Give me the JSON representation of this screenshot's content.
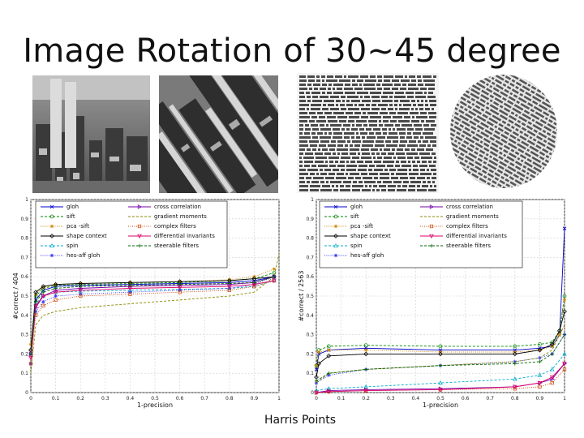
{
  "slide": {
    "title": "Image Rotation of 30~45 degree",
    "caption": "Harris Points"
  },
  "colors": {
    "gloh": "#0000cc",
    "sift": "#008800",
    "pca_sift": "#cc8800",
    "shape_context": "#000000",
    "spin": "#00aacc",
    "hes_aff_gloh": "#3333ff",
    "cross_correlation": "#7700aa",
    "gradient_moments": "#888800",
    "complex_filters": "#cc4400",
    "differential_invariants": "#dd0066",
    "steerable_filters": "#006600"
  },
  "chart_data": [
    {
      "type": "line",
      "xlabel": "1-precision",
      "ylabel": "#correct / 404",
      "xlim": [
        0,
        1
      ],
      "ylim": [
        0,
        1
      ],
      "xticks": [
        "0",
        "0.1",
        "0.2",
        "0.3",
        "0.4",
        "0.5",
        "0.6",
        "0.7",
        "0.8",
        "0.9",
        "1"
      ],
      "yticks": [
        "0",
        "0.1",
        "0.2",
        "0.3",
        "0.4",
        "0.5",
        "0.6",
        "0.7",
        "0.8",
        "0.9",
        "1"
      ],
      "grid": true,
      "legend": "top",
      "series": [
        {
          "name": "gloh",
          "color_key": "gloh",
          "marker": "x",
          "x": [
            0,
            0.02,
            0.05,
            0.1,
            0.2,
            0.4,
            0.6,
            0.8,
            0.9,
            0.98
          ],
          "y": [
            0.2,
            0.48,
            0.53,
            0.55,
            0.555,
            0.56,
            0.565,
            0.57,
            0.58,
            0.6
          ]
        },
        {
          "name": "sift",
          "color_key": "sift",
          "marker": "o",
          "x": [
            0,
            0.02,
            0.05,
            0.1,
            0.2,
            0.4,
            0.6,
            0.8,
            0.9,
            0.98
          ],
          "y": [
            0.22,
            0.5,
            0.54,
            0.555,
            0.56,
            0.565,
            0.57,
            0.58,
            0.59,
            0.62
          ]
        },
        {
          "name": "pca -sift",
          "color_key": "pca_sift",
          "marker": "*",
          "x": [
            0,
            0.02,
            0.05,
            0.1,
            0.2,
            0.4,
            0.6,
            0.8,
            0.9,
            0.98
          ],
          "y": [
            0.25,
            0.51,
            0.545,
            0.56,
            0.565,
            0.57,
            0.575,
            0.585,
            0.6,
            0.64
          ]
        },
        {
          "name": "shape context",
          "color_key": "shape_context",
          "marker": "d",
          "x": [
            0,
            0.02,
            0.05,
            0.1,
            0.2,
            0.4,
            0.6,
            0.8,
            0.9,
            0.98
          ],
          "y": [
            0.22,
            0.52,
            0.55,
            0.56,
            0.565,
            0.57,
            0.575,
            0.58,
            0.59,
            0.6
          ]
        },
        {
          "name": "spin",
          "color_key": "spin",
          "marker": "^",
          "x": [
            0,
            0.02,
            0.05,
            0.1,
            0.2,
            0.4,
            0.6,
            0.8,
            0.9,
            0.98
          ],
          "y": [
            0.2,
            0.46,
            0.5,
            0.52,
            0.525,
            0.53,
            0.535,
            0.54,
            0.55,
            0.58
          ]
        },
        {
          "name": "hes-aff gloh",
          "color_key": "hes_aff_gloh",
          "marker": "*",
          "x": [
            0,
            0.02,
            0.05,
            0.1,
            0.2,
            0.4,
            0.6,
            0.8,
            0.9,
            0.98
          ],
          "y": [
            0.15,
            0.42,
            0.47,
            0.5,
            0.51,
            0.52,
            0.53,
            0.54,
            0.56,
            0.6
          ]
        },
        {
          "name": "cross correlation",
          "color_key": "cross_correlation",
          "marker": ">",
          "x": [
            0,
            0.02,
            0.05,
            0.1,
            0.2,
            0.4,
            0.6,
            0.8,
            0.9,
            0.98
          ],
          "y": [
            0.2,
            0.44,
            0.5,
            0.53,
            0.54,
            0.55,
            0.555,
            0.56,
            0.57,
            0.6
          ]
        },
        {
          "name": "gradient moments",
          "color_key": "gradient_moments",
          "marker": "",
          "x": [
            0,
            0.02,
            0.05,
            0.1,
            0.2,
            0.4,
            0.6,
            0.8,
            0.9,
            0.98,
            1
          ],
          "y": [
            0.1,
            0.35,
            0.4,
            0.42,
            0.44,
            0.46,
            0.48,
            0.5,
            0.52,
            0.6,
            0.72
          ]
        },
        {
          "name": "complex filters",
          "color_key": "complex_filters",
          "marker": "s",
          "x": [
            0,
            0.02,
            0.05,
            0.1,
            0.2,
            0.4,
            0.6,
            0.8,
            0.9,
            0.98
          ],
          "y": [
            0.15,
            0.4,
            0.45,
            0.48,
            0.5,
            0.51,
            0.52,
            0.53,
            0.55,
            0.58
          ]
        },
        {
          "name": "differential invariants",
          "color_key": "differential_invariants",
          "marker": "v",
          "x": [
            0,
            0.02,
            0.05,
            0.1,
            0.2,
            0.4,
            0.6,
            0.8,
            0.9,
            0.98
          ],
          "y": [
            0.18,
            0.45,
            0.5,
            0.52,
            0.53,
            0.54,
            0.545,
            0.55,
            0.56,
            0.58
          ]
        },
        {
          "name": "steerable filters",
          "color_key": "steerable_filters",
          "marker": "+",
          "x": [
            0,
            0.02,
            0.05,
            0.1,
            0.2,
            0.4,
            0.6,
            0.8,
            0.9,
            0.98
          ],
          "y": [
            0.2,
            0.47,
            0.52,
            0.54,
            0.55,
            0.555,
            0.56,
            0.565,
            0.57,
            0.6
          ]
        }
      ]
    },
    {
      "type": "line",
      "xlabel": "1-precision",
      "ylabel": "#correct / 2563",
      "xlim": [
        0,
        1
      ],
      "ylim": [
        0,
        1
      ],
      "xticks": [
        "0",
        "0.1",
        "0.2",
        "0.3",
        "0.4",
        "0.5",
        "0.6",
        "0.7",
        "0.8",
        "0.9",
        "1"
      ],
      "yticks": [
        "0",
        "0.1",
        "0.2",
        "0.3",
        "0.4",
        "0.5",
        "0.6",
        "0.7",
        "0.8",
        "0.9",
        "1"
      ],
      "grid": true,
      "legend": "top",
      "series": [
        {
          "name": "gloh",
          "color_key": "gloh",
          "marker": "x",
          "x": [
            0,
            0.01,
            0.05,
            0.2,
            0.5,
            0.8,
            0.9,
            0.95,
            0.98,
            1
          ],
          "y": [
            0.12,
            0.2,
            0.22,
            0.23,
            0.22,
            0.22,
            0.23,
            0.24,
            0.3,
            0.85
          ]
        },
        {
          "name": "sift",
          "color_key": "sift",
          "marker": "o",
          "x": [
            0,
            0.01,
            0.05,
            0.2,
            0.5,
            0.8,
            0.9,
            0.95,
            0.98,
            1
          ],
          "y": [
            0.14,
            0.22,
            0.24,
            0.245,
            0.24,
            0.24,
            0.25,
            0.26,
            0.32,
            0.5
          ]
        },
        {
          "name": "pca -sift",
          "color_key": "pca_sift",
          "marker": "*",
          "x": [
            0,
            0.01,
            0.05,
            0.2,
            0.5,
            0.8,
            0.9,
            0.95,
            0.98,
            1
          ],
          "y": [
            0.14,
            0.21,
            0.22,
            0.22,
            0.21,
            0.21,
            0.22,
            0.24,
            0.3,
            0.48
          ]
        },
        {
          "name": "shape context",
          "color_key": "shape_context",
          "marker": "d",
          "x": [
            0,
            0.01,
            0.05,
            0.2,
            0.5,
            0.8,
            0.9,
            0.95,
            0.98,
            1
          ],
          "y": [
            0.08,
            0.15,
            0.19,
            0.2,
            0.2,
            0.2,
            0.22,
            0.25,
            0.32,
            0.42
          ]
        },
        {
          "name": "spin",
          "color_key": "spin",
          "marker": "^",
          "x": [
            0,
            0.05,
            0.2,
            0.5,
            0.8,
            0.9,
            0.95,
            1
          ],
          "y": [
            0.01,
            0.02,
            0.03,
            0.05,
            0.07,
            0.09,
            0.12,
            0.2
          ]
        },
        {
          "name": "hes-aff gloh",
          "color_key": "hes_aff_gloh",
          "marker": "*",
          "x": [
            0,
            0.05,
            0.2,
            0.5,
            0.8,
            0.9,
            0.95,
            1
          ],
          "y": [
            0.05,
            0.09,
            0.12,
            0.14,
            0.16,
            0.18,
            0.2,
            0.3
          ]
        },
        {
          "name": "cross correlation",
          "color_key": "cross_correlation",
          "marker": ">",
          "x": [
            0,
            0.05,
            0.2,
            0.5,
            0.8,
            0.9,
            0.95,
            1
          ],
          "y": [
            0.0,
            0.01,
            0.015,
            0.02,
            0.03,
            0.05,
            0.07,
            0.15
          ]
        },
        {
          "name": "gradient moments",
          "color_key": "gradient_moments",
          "marker": "",
          "x": [
            0,
            0.05,
            0.2,
            0.5,
            0.8,
            0.9,
            0.95,
            1
          ],
          "y": [
            0.05,
            0.1,
            0.12,
            0.14,
            0.16,
            0.18,
            0.22,
            0.35
          ]
        },
        {
          "name": "complex filters",
          "color_key": "complex_filters",
          "marker": "s",
          "x": [
            0,
            0.05,
            0.2,
            0.5,
            0.8,
            0.9,
            0.95,
            1
          ],
          "y": [
            0.0,
            0.005,
            0.01,
            0.015,
            0.02,
            0.03,
            0.05,
            0.12
          ]
        },
        {
          "name": "differential invariants",
          "color_key": "differential_invariants",
          "marker": "v",
          "x": [
            0,
            0.05,
            0.2,
            0.5,
            0.8,
            0.9,
            0.95,
            1
          ],
          "y": [
            0.0,
            0.005,
            0.01,
            0.015,
            0.03,
            0.05,
            0.08,
            0.15
          ]
        },
        {
          "name": "steerable filters",
          "color_key": "steerable_filters",
          "marker": "+",
          "x": [
            0,
            0.05,
            0.2,
            0.5,
            0.8,
            0.9,
            0.95,
            1
          ],
          "y": [
            0.06,
            0.1,
            0.12,
            0.14,
            0.15,
            0.16,
            0.2,
            0.3
          ]
        }
      ]
    }
  ]
}
